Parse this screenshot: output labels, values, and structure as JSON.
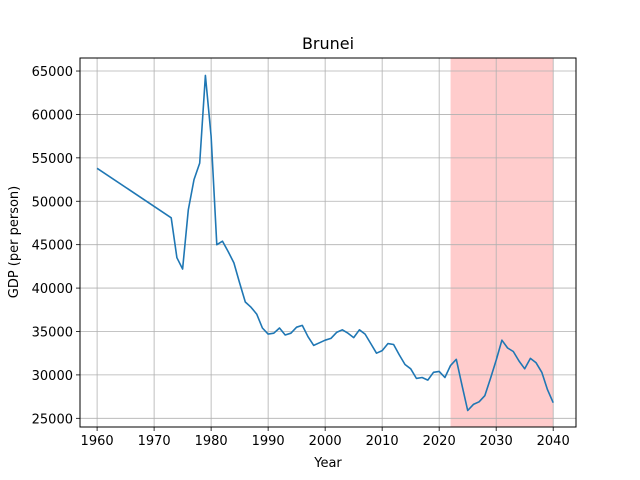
{
  "chart_data": {
    "type": "line",
    "title": "Brunei",
    "xlabel": "Year",
    "ylabel": "GDP (per person)",
    "xlim": [
      1957,
      2044
    ],
    "ylim": [
      24000,
      66500
    ],
    "xticks": [
      1960,
      1970,
      1980,
      1990,
      2000,
      2010,
      2020,
      2030,
      2040
    ],
    "yticks": [
      25000,
      30000,
      35000,
      40000,
      45000,
      50000,
      55000,
      60000,
      65000
    ],
    "grid": true,
    "line_color": "#1f77b4",
    "highlight": {
      "x_start": 2022,
      "x_end": 2040,
      "color": "#ffcccc"
    },
    "series": [
      {
        "x": [
          1960,
          1973,
          1974,
          1975,
          1976,
          1977,
          1978,
          1979,
          1980,
          1981,
          1982,
          1983,
          1984,
          1985,
          1986,
          1987,
          1988,
          1989,
          1990,
          1991,
          1992,
          1993,
          1994,
          1995,
          1996,
          1997,
          1998,
          1999,
          2000,
          2001,
          2002,
          2003,
          2004,
          2005,
          2006,
          2007,
          2008,
          2009,
          2010,
          2011,
          2012,
          2013,
          2014,
          2015,
          2016,
          2017,
          2018,
          2019,
          2020,
          2021,
          2022,
          2023,
          2024,
          2025,
          2026,
          2027,
          2028,
          2029,
          2030,
          2031,
          2032,
          2033,
          2034,
          2035,
          2036,
          2037,
          2038,
          2039,
          2040
        ],
        "values": [
          53800,
          48100,
          43500,
          42200,
          49000,
          52500,
          54400,
          64500,
          57500,
          45000,
          45400,
          44200,
          42900,
          40600,
          38400,
          37800,
          37000,
          35400,
          34700,
          34800,
          35400,
          34600,
          34800,
          35500,
          35700,
          34400,
          33400,
          33700,
          34000,
          34200,
          34900,
          35200,
          34800,
          34300,
          35200,
          34700,
          33600,
          32500,
          32800,
          33600,
          33500,
          32300,
          31200,
          30700,
          29600,
          29700,
          29400,
          30300,
          30400,
          29700,
          31100,
          31800,
          28800,
          25900,
          26600,
          26900,
          27600,
          29600,
          31700,
          34000,
          33100,
          32700,
          31600,
          30700,
          31900,
          31400,
          30300,
          28300,
          26800
        ]
      }
    ]
  }
}
